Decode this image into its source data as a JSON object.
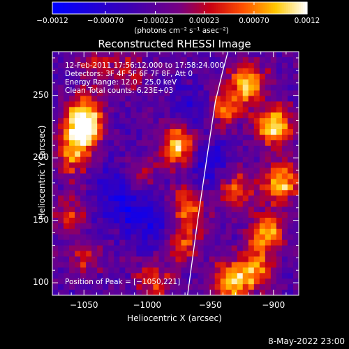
{
  "chart_data": {
    "type": "heatmap",
    "title": "Reconstructed RHESSI Image",
    "xlabel": "Heliocentric X (arcsec)",
    "ylabel": "Heliocentric Y (arcsec)",
    "xlim": [
      -1075,
      -880
    ],
    "ylim": [
      90,
      285
    ],
    "x_ticks": [
      "−1050",
      "−1000",
      "−950",
      "−900"
    ],
    "x_tick_values": [
      -1050,
      -1000,
      -950,
      -900
    ],
    "y_ticks": [
      "100",
      "150",
      "200",
      "250"
    ],
    "y_tick_values": [
      100,
      150,
      200,
      250
    ],
    "colorbar": {
      "range": [
        -0.0012,
        0.0012
      ],
      "ticks": [
        "−0.0012",
        "−0.00070",
        "−0.00023",
        "0.00023",
        "0.00070",
        "0.0012"
      ],
      "tick_values": [
        -0.0012,
        -0.0007,
        -0.00023,
        0.00023,
        0.0007,
        0.0012
      ],
      "unit": "(photons cm⁻² s⁻¹ asec⁻²)"
    },
    "info_lines": [
      "12-Feb-2011 17:56:12.000 to 17:58:24.000",
      "Detectors: 3F 4F 5F 6F 7F 8F, Att 0",
      "Energy Range: 12.0 - 25.0 keV",
      "Clean    Total counts: 6.23E+03"
    ],
    "peak_label": "Position of Peak = [−1050,221]",
    "peak": [
      -1050,
      221
    ],
    "limb_line": [
      [
        -968,
        90
      ],
      [
        -960,
        150
      ],
      [
        -952,
        205
      ],
      [
        -946,
        245
      ],
      [
        -940,
        270
      ],
      [
        -936,
        285
      ]
    ],
    "blobs": [
      {
        "x": -1052,
        "y": 221,
        "amp": 1.0
      },
      {
        "x": -1048,
        "y": 235,
        "amp": 0.7
      },
      {
        "x": -1060,
        "y": 200,
        "amp": 0.55
      },
      {
        "x": -975,
        "y": 210,
        "amp": 0.85
      },
      {
        "x": -968,
        "y": 160,
        "amp": 0.65
      },
      {
        "x": -972,
        "y": 130,
        "amp": 0.55
      },
      {
        "x": -995,
        "y": 100,
        "amp": 0.5
      },
      {
        "x": -1062,
        "y": 155,
        "amp": 0.45
      },
      {
        "x": -1050,
        "y": 120,
        "amp": 0.4
      },
      {
        "x": -900,
        "y": 225,
        "amp": 0.95
      },
      {
        "x": -895,
        "y": 180,
        "amp": 0.85
      },
      {
        "x": -905,
        "y": 140,
        "amp": 0.8
      },
      {
        "x": -915,
        "y": 110,
        "amp": 0.75
      },
      {
        "x": -935,
        "y": 100,
        "amp": 0.8
      },
      {
        "x": -920,
        "y": 260,
        "amp": 0.85
      },
      {
        "x": -940,
        "y": 240,
        "amp": 0.65
      },
      {
        "x": -930,
        "y": 175,
        "amp": 0.6
      },
      {
        "x": -1015,
        "y": 270,
        "amp": 0.35
      },
      {
        "x": -1040,
        "y": 275,
        "amp": 0.35
      },
      {
        "x": -1005,
        "y": 185,
        "amp": 0.3
      }
    ],
    "dips": [
      {
        "x": -1015,
        "y": 160,
        "amp": 0.5
      },
      {
        "x": -995,
        "y": 145,
        "amp": 0.45
      },
      {
        "x": -1030,
        "y": 175,
        "amp": 0.35
      },
      {
        "x": -950,
        "y": 195,
        "amp": 0.5
      },
      {
        "x": -960,
        "y": 240,
        "amp": 0.4
      }
    ]
  },
  "footer_timestamp": "8-May-2022 23:00"
}
